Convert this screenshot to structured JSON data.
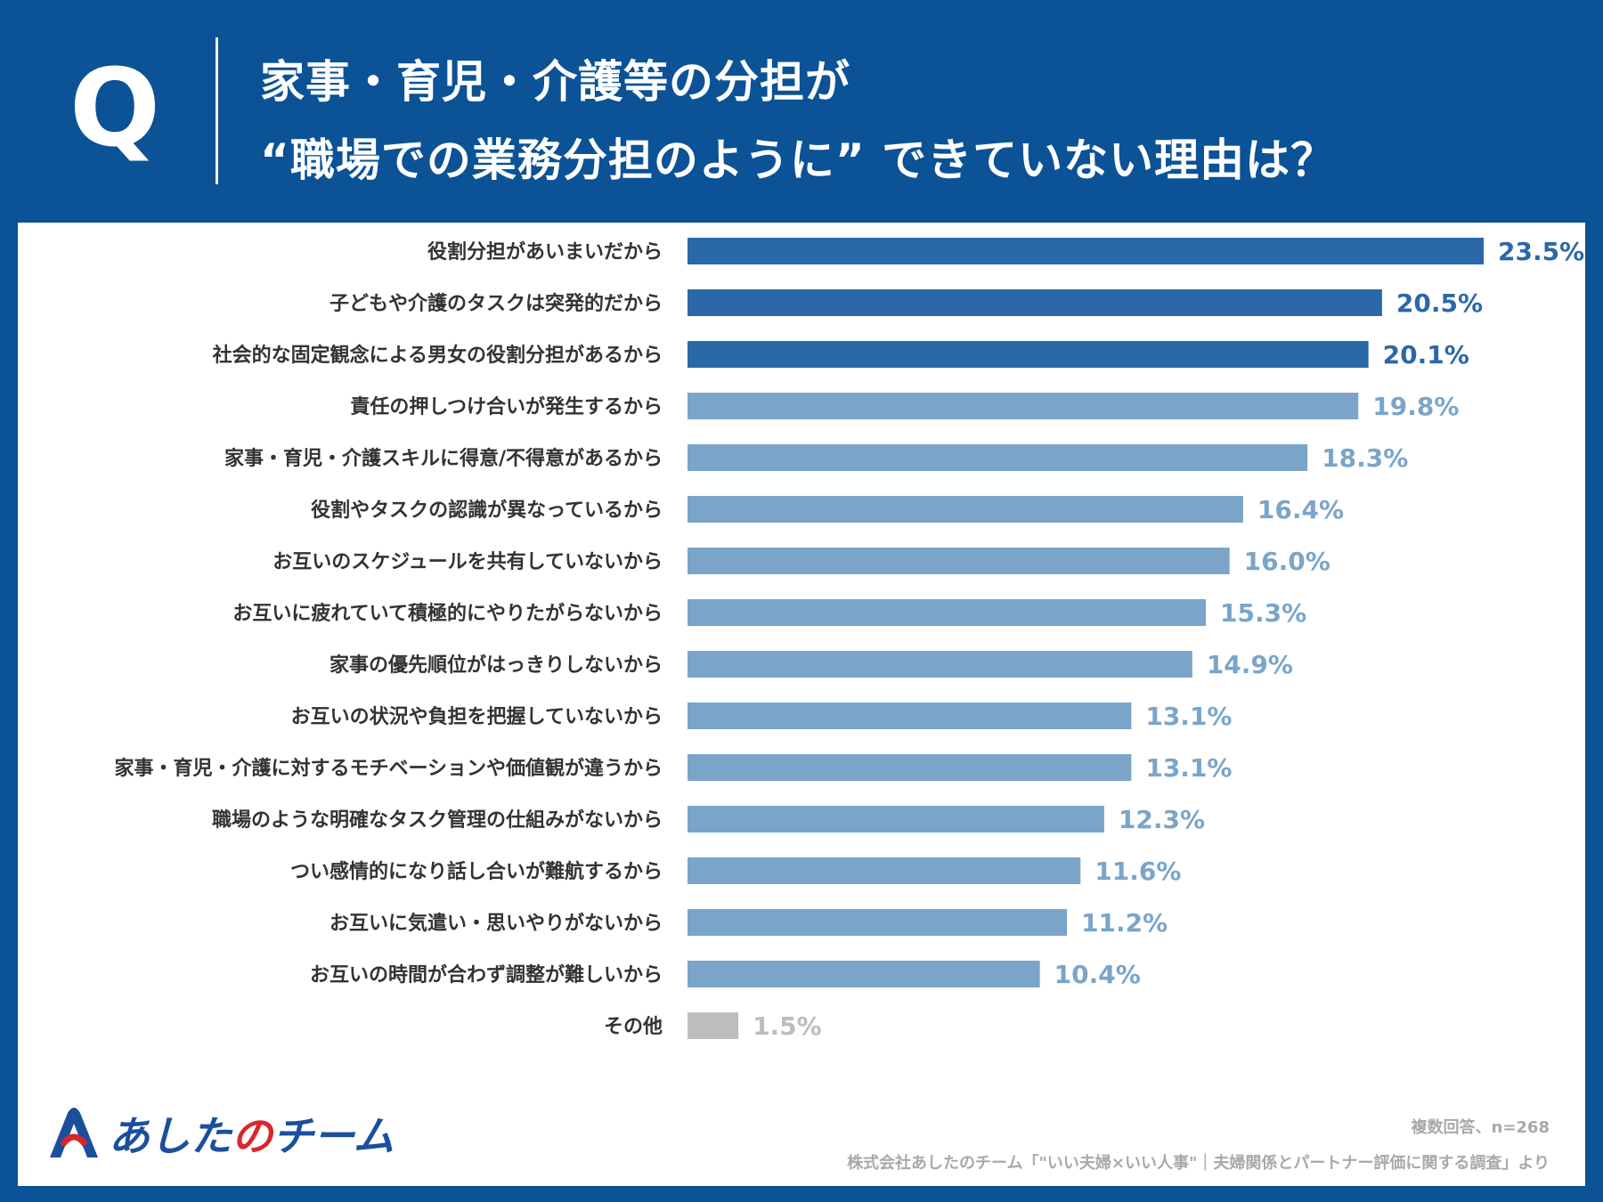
{
  "header": {
    "q_mark": "Q",
    "title_line1": "家事・育児・介護等の分担が",
    "title_line2": "“職場での業務分担のように” できていない理由は？"
  },
  "colors": {
    "header_bg": "#0b5296",
    "top_bar": "#2a68a8",
    "other_bar": "#7aa5c9",
    "misc_bar": "#bdbdbd",
    "label_text": "#333333"
  },
  "chart_data": {
    "type": "bar",
    "orientation": "horizontal",
    "title": "家事・育児・介護等の分担が“職場での業務分担のように” できていない理由は？",
    "xlim": [
      0,
      25
    ],
    "unit": "%",
    "categories": [
      "役割分担があいまいだから",
      "子どもや介護のタスクは突発的だから",
      "社会的な固定観念による男女の役割分担があるから",
      "責任の押しつけ合いが発生するから",
      "家事・育児・介護スキルに得意/不得意があるから",
      "役割やタスクの認識が異なっているから",
      "お互いのスケジュールを共有していないから",
      "お互いに疲れていて積極的にやりたがらないから",
      "家事の優先順位がはっきりしないから",
      "お互いの状況や負担を把握していないから",
      "家事・育児・介護に対するモチベーションや価値観が違うから",
      "職場のような明確なタスク管理の仕組みがないから",
      "つい感情的になり話し合いが難航するから",
      "お互いに気遣い・思いやりがないから",
      "お互いの時間が合わず調整が難しいから",
      "その他"
    ],
    "values": [
      23.5,
      20.5,
      20.1,
      19.8,
      18.3,
      16.4,
      16.0,
      15.3,
      14.9,
      13.1,
      13.1,
      12.3,
      11.6,
      11.2,
      10.4,
      1.5
    ],
    "value_labels": [
      "23.5%",
      "20.5%",
      "20.1%",
      "19.8%",
      "18.3%",
      "16.4%",
      "16.0%",
      "15.3%",
      "14.9%",
      "13.1%",
      "13.1%",
      "12.3%",
      "11.6%",
      "11.2%",
      "10.4%",
      "1.5%"
    ],
    "highlight_top": 3
  },
  "footer": {
    "note1": "複数回答、n=268",
    "note2": "株式会社あしたのチーム「\"いい夫婦×いい人事\"｜夫婦関係とパートナー評価に関する調査」より"
  },
  "logo": {
    "text_main": "あした",
    "text_mid": "の",
    "text_end": "チーム"
  }
}
